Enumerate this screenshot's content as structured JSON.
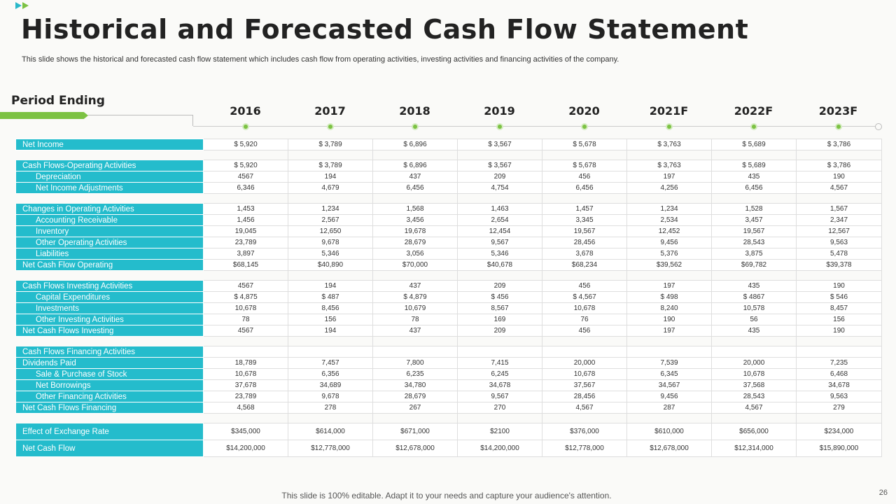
{
  "title": "Historical and Forecasted Cash Flow Statement",
  "subtitle": "This slide shows the historical and forecasted cash flow statement which includes cash flow from operating activities, investing activities and financing activities of the company.",
  "period_label": "Period Ending",
  "years": [
    "2016",
    "2017",
    "2018",
    "2019",
    "2020",
    "2021F",
    "2022F",
    "2023F"
  ],
  "rows": [
    {
      "label": "Net Income",
      "values": [
        "$ 5,920",
        "$ 3,789",
        "$ 6,896",
        "$ 3,567",
        "$ 5,678",
        "$ 3,763",
        "$ 5,689",
        "$ 3,786"
      ]
    },
    {
      "blank": true
    },
    {
      "label": "Cash Flows-Operating Activities",
      "values": [
        "$ 5,920",
        "$ 3,789",
        "$ 6,896",
        "$ 3,567",
        "$ 5,678",
        "$ 3,763",
        "$ 5,689",
        "$ 3,786"
      ]
    },
    {
      "label": "Depreciation",
      "indent": true,
      "values": [
        "4567",
        "194",
        "437",
        "209",
        "456",
        "197",
        "435",
        "190"
      ]
    },
    {
      "label": "Net Income Adjustments",
      "indent": true,
      "values": [
        "6,346",
        "4,679",
        "6,456",
        "4,754",
        "6,456",
        "4,256",
        "6,456",
        "4,567"
      ]
    },
    {
      "blank": true
    },
    {
      "label": "Changes in Operating Activities",
      "values": [
        "1,453",
        "1,234",
        "1,568",
        "1,463",
        "1,457",
        "1,234",
        "1,528",
        "1,567"
      ]
    },
    {
      "label": "Accounting Receivable",
      "indent": true,
      "values": [
        "1,456",
        "2,567",
        "3,456",
        "2,654",
        "3,345",
        "2,534",
        "3,457",
        "2,347"
      ]
    },
    {
      "label": "Inventory",
      "indent": true,
      "values": [
        "19,045",
        "12,650",
        "19,678",
        "12,454",
        "19,567",
        "12,452",
        "19,567",
        "12,567"
      ]
    },
    {
      "label": "Other Operating Activities",
      "indent": true,
      "values": [
        "23,789",
        "9,678",
        "28,679",
        "9,567",
        "28,456",
        "9,456",
        "28,543",
        "9,563"
      ]
    },
    {
      "label": "Liabilities",
      "indent": true,
      "values": [
        "3,897",
        "5,346",
        "3,056",
        "5,346",
        "3,678",
        "5,376",
        "3,875",
        "5,478"
      ]
    },
    {
      "label": "Net Cash Flow Operating",
      "values": [
        "$68,145",
        "$40,890",
        "$70,000",
        "$40,678",
        "$68,234",
        "$39,562",
        "$69,782",
        "$39,378"
      ]
    },
    {
      "blank": true
    },
    {
      "label": "Cash Flows Investing Activities",
      "values": [
        "4567",
        "194",
        "437",
        "209",
        "456",
        "197",
        "435",
        "190"
      ]
    },
    {
      "label": "Capital Expenditures",
      "indent": true,
      "values": [
        "$ 4,875",
        "$ 487",
        "$ 4,879",
        "$ 456",
        "$ 4,567",
        "$ 498",
        "$ 4867",
        "$ 546"
      ]
    },
    {
      "label": "Investments",
      "indent": true,
      "values": [
        "10,678",
        "8,456",
        "10,679",
        "8,567",
        "10,678",
        "8,240",
        "10,578",
        "8,457"
      ]
    },
    {
      "label": "Other Investing Activities",
      "indent": true,
      "values": [
        "78",
        "156",
        "78",
        "169",
        "76",
        "190",
        "56",
        "156"
      ]
    },
    {
      "label": "Net Cash Flows Investing",
      "values": [
        "4567",
        "194",
        "437",
        "209",
        "456",
        "197",
        "435",
        "190"
      ]
    },
    {
      "blank": true
    },
    {
      "label": "Cash Flows Financing Activities",
      "values": [
        "",
        "",
        "",
        "",
        "",
        "",
        "",
        ""
      ]
    },
    {
      "label": "Dividends Paid",
      "values": [
        "18,789",
        "7,457",
        "7,800",
        "7,415",
        "20,000",
        "7,539",
        "20,000",
        "7,235"
      ]
    },
    {
      "label": "Sale & Purchase of Stock",
      "indent": true,
      "values": [
        "10,678",
        "6,356",
        "6,235",
        "6,245",
        "10,678",
        "6,345",
        "10,678",
        "6,468"
      ]
    },
    {
      "label": "Net Borrowings",
      "indent": true,
      "values": [
        "37,678",
        "34,689",
        "34,780",
        "34,678",
        "37,567",
        "34,567",
        "37,568",
        "34,678"
      ]
    },
    {
      "label": "Other Financing Activities",
      "indent": true,
      "values": [
        "23,789",
        "9,678",
        "28,679",
        "9,567",
        "28,456",
        "9,456",
        "28,543",
        "9,563"
      ]
    },
    {
      "label": "Net Cash Flows Financing",
      "values": [
        "4,568",
        "278",
        "267",
        "270",
        "4,567",
        "287",
        "4,567",
        "279"
      ]
    },
    {
      "blank": true
    },
    {
      "label": "Effect of Exchange Rate",
      "tall": true,
      "values": [
        "$345,000",
        "$614,000",
        "$671,000",
        "$2100",
        "$376,000",
        "$610,000",
        "$656,000",
        "$234,000"
      ]
    },
    {
      "label": "Net Cash Flow",
      "tall": true,
      "values": [
        "$14,200,000",
        "$12,778,000",
        "$12,678,000",
        "$14,200,000",
        "$12,778,000",
        "$12,678,000",
        "$12,314,000",
        "$15,890,000"
      ]
    }
  ],
  "footer": "This slide is 100% editable. Adapt it to your needs and capture your audience's attention.",
  "page_number": "26",
  "colors": {
    "teal": "#24bccc",
    "green": "#7cc243"
  }
}
